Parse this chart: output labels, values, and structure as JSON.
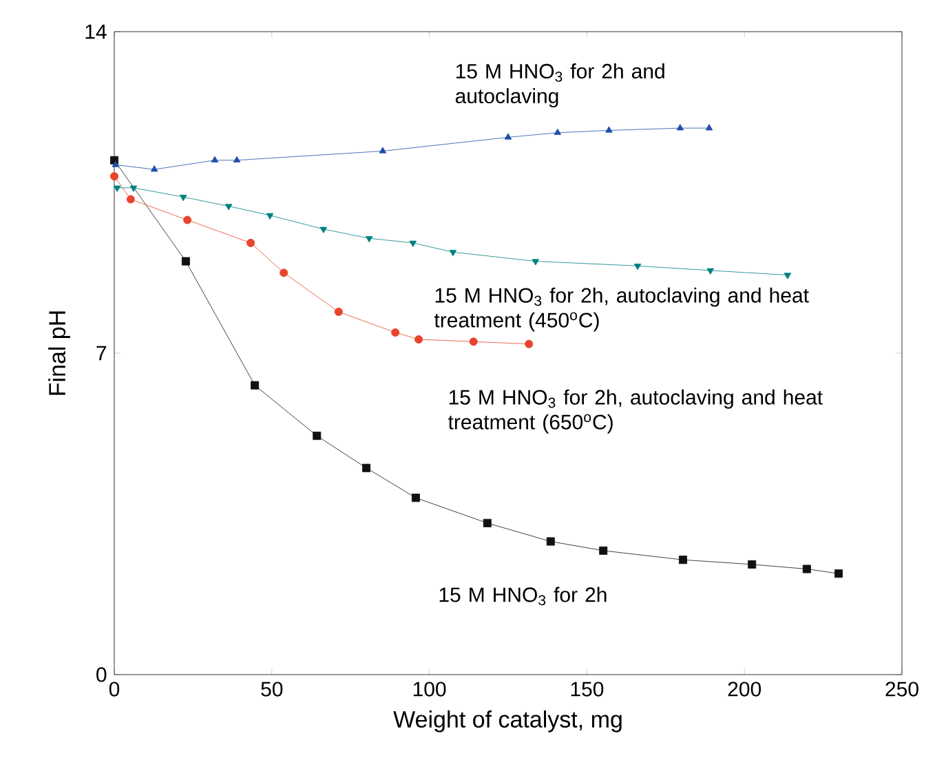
{
  "chart_data": {
    "type": "line",
    "xlabel": "Weight of catalyst, mg",
    "ylabel": "Final pH",
    "xlim": [
      0,
      250
    ],
    "ylim": [
      0,
      14
    ],
    "xticks": [
      0,
      50,
      100,
      150,
      200,
      250
    ],
    "yticks": [
      0,
      7,
      14
    ],
    "grid": false,
    "line_style": "solid",
    "series": [
      {
        "name": "15 M HNO$_{3}$ for 2h",
        "color": "#111111",
        "marker": "square",
        "x": [
          0,
          22.7,
          44.6,
          64.3,
          80,
          95.7,
          118.4,
          138.5,
          155.2,
          180.5,
          202.4,
          219.8,
          229.9
        ],
        "values": [
          11.2,
          9.0,
          6.3,
          5.2,
          4.5,
          3.85,
          3.3,
          2.9,
          2.7,
          2.5,
          2.4,
          2.3,
          2.2
        ]
      },
      {
        "name": "15 M HNO$_{3}$ for 2h, autoclaving and heat treatment (650$^{o}$C)",
        "color": "#e8452c",
        "marker": "circle",
        "x": [
          0,
          5.2,
          23.2,
          43.3,
          53.8,
          71.2,
          89.2,
          96.6,
          114,
          131.6
        ],
        "values": [
          10.85,
          10.35,
          9.9,
          9.4,
          8.75,
          7.9,
          7.45,
          7.3,
          7.25,
          7.2
        ]
      },
      {
        "name": "15 M HNO$_{3}$ for 2h, autoclaving and heat treatment (450$^{o}$C)",
        "color": "#008080",
        "marker": "triangle_down",
        "x": [
          0.9,
          6.1,
          21.9,
          36.3,
          49.4,
          66.4,
          80.9,
          94.8,
          107.5,
          133.7,
          166.1,
          189.2,
          213.7
        ],
        "values": [
          10.6,
          10.6,
          10.4,
          10.2,
          10.0,
          9.7,
          9.5,
          9.4,
          9.2,
          9.0,
          8.9,
          8.8,
          8.7
        ]
      },
      {
        "name": "15 M HNO$_{3}$ for 2h and autoclaving",
        "color": "#1f4fa8",
        "marker": "triangle",
        "x": [
          0.4,
          12.7,
          31.9,
          38.9,
          85.2,
          125,
          140.7,
          157,
          179.6,
          188.8
        ],
        "values": [
          11.1,
          11.0,
          11.2,
          11.2,
          11.4,
          11.7,
          11.8,
          11.85,
          11.9,
          11.9
        ]
      }
    ]
  }
}
